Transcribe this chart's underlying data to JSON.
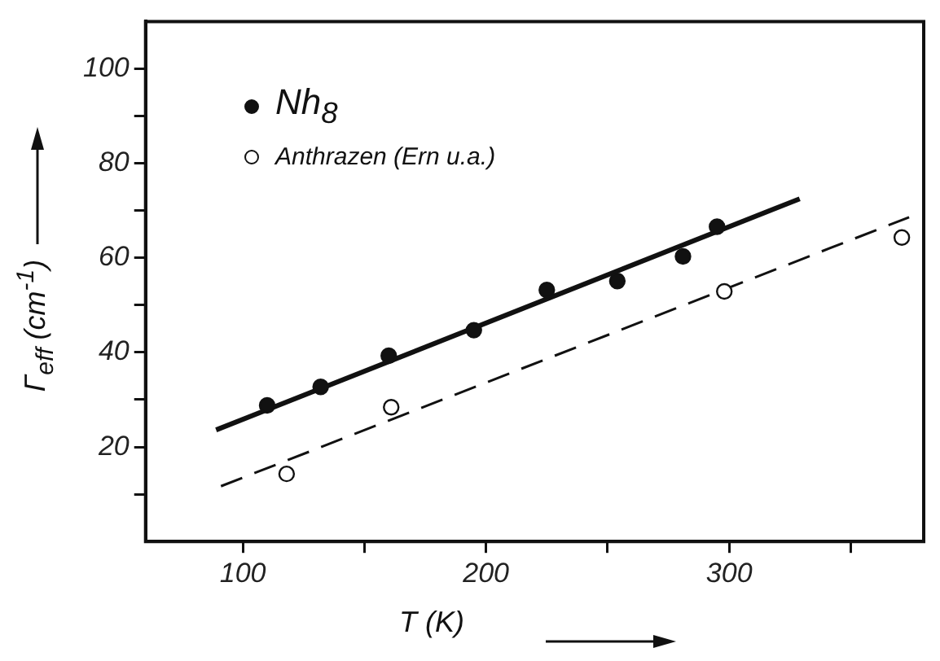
{
  "chart_data": {
    "type": "scatter",
    "xlabel": "T (K)",
    "ylabel": "Γ$_{eff}$ (cm$^{-1}$)",
    "xlim": [
      60,
      380
    ],
    "xticks": [
      100,
      {
        "value": 150,
        "label": null
      },
      200,
      {
        "value": 250,
        "label": null
      },
      300,
      {
        "value": 350,
        "label": null
      }
    ],
    "ylim": [
      0,
      110
    ],
    "yticks": [
      {
        "value": 10,
        "label": null
      },
      20,
      {
        "value": 30,
        "label": null
      },
      40,
      {
        "value": 50,
        "label": null
      },
      60,
      {
        "value": 70,
        "label": null
      },
      80,
      {
        "value": 90,
        "label": null
      },
      100
    ],
    "grid": false,
    "legend": "top left",
    "series": [
      {
        "name": "Nh$_{8}$",
        "type": "scatter",
        "marker": "circle",
        "color": "#111111",
        "x": [
          110,
          132,
          160,
          195,
          225,
          254,
          281,
          295
        ],
        "values": [
          28.8,
          32.7,
          39.3,
          44.7,
          53.2,
          55.1,
          60.3,
          66.6
        ]
      },
      {
        "name": "Anthrazen (Ern u.a.)",
        "type": "scatter",
        "marker": "circle",
        "color": "#ffffff",
        "x": [
          118,
          161,
          298,
          371
        ],
        "values": [
          14.3,
          28.4,
          52.9,
          64.3
        ]
      },
      {
        "type": "line",
        "marker": "none",
        "line_style": "solid",
        "color": "#111111",
        "x": [
          89,
          329
        ],
        "values": [
          23.6,
          72.5
        ]
      },
      {
        "type": "line",
        "marker": "none",
        "line_style": "dashed",
        "color": "#111111",
        "x": [
          91,
          374
        ],
        "values": [
          11.7,
          68.6
        ]
      }
    ]
  }
}
